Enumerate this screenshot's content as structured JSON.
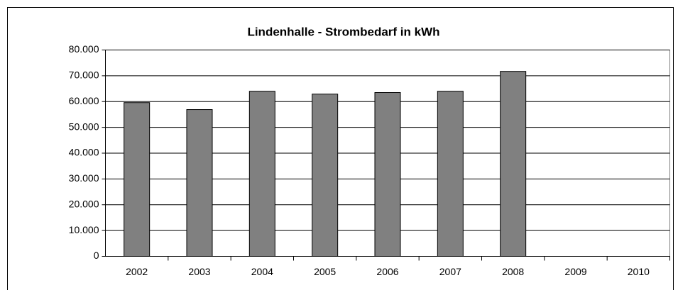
{
  "chart_data": {
    "type": "bar",
    "title": "Lindenhalle - Strombedarf in kWh",
    "categories": [
      "2002",
      "2003",
      "2004",
      "2005",
      "2006",
      "2007",
      "2008",
      "2009",
      "2010"
    ],
    "values": [
      59600,
      56900,
      64000,
      62900,
      63500,
      64000,
      71700,
      null,
      null
    ],
    "color": "#808080",
    "ylim": [
      0,
      80000
    ],
    "yticks": [
      0,
      {
        "value": 10000,
        "label": "10.000"
      },
      {
        "value": 20000,
        "label": "20.000"
      },
      {
        "value": 30000,
        "label": "30.000"
      },
      {
        "value": 40000,
        "label": "40.000"
      },
      {
        "value": 50000,
        "label": "50.000"
      },
      {
        "value": 60000,
        "label": "60.000"
      },
      {
        "value": 70000,
        "label": "70.000"
      },
      {
        "value": 80000,
        "label": "80.000"
      }
    ],
    "grid": true
  }
}
